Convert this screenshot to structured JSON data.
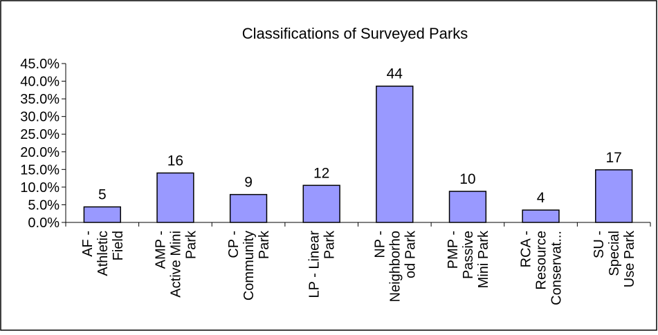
{
  "chart_data": {
    "type": "bar",
    "title": "Classifications of Surveyed Parks",
    "xlabel": "",
    "ylabel": "",
    "ylim": [
      0,
      45
    ],
    "yticks": [
      "0.0%",
      "5.0%",
      "10.0%",
      "15.0%",
      "20.0%",
      "25.0%",
      "30.0%",
      "35.0%",
      "40.0%",
      "45.0%"
    ],
    "categories": [
      [
        "AF -",
        "Athletic",
        "Field"
      ],
      [
        "AMP -",
        "Active Mini",
        "Park"
      ],
      [
        "CP -",
        "Community",
        "Park"
      ],
      [
        "LP - Linear",
        "Park"
      ],
      [
        "NP -",
        "Neighborho",
        "od Park"
      ],
      [
        "PMP -",
        "Passive",
        "Mini Park"
      ],
      [
        "RCA -",
        "Resource",
        "Conservat..."
      ],
      [
        "SU -",
        "Special",
        "Use Park"
      ]
    ],
    "values": [
      4.4,
      14.0,
      7.9,
      10.5,
      38.6,
      8.8,
      3.5,
      14.9
    ],
    "data_labels": [
      "5",
      "16",
      "9",
      "12",
      "44",
      "10",
      "4",
      "17"
    ],
    "bar_color": "#9999ff",
    "grid": false,
    "legend": "none"
  }
}
